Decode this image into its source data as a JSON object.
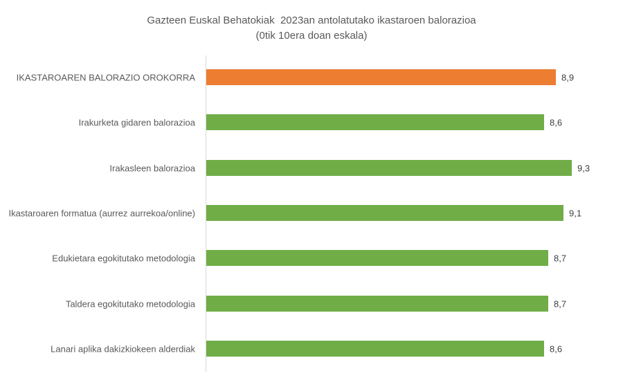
{
  "chart_data": {
    "type": "bar",
    "orientation": "horizontal",
    "title": "Gazteen Euskal Behatokiak  2023an antolatutako ikastaroen balorazioa",
    "subtitle": "(0tik 10era doan eskala)",
    "xlabel": "",
    "ylabel": "",
    "xlim": [
      0,
      10
    ],
    "grid": false,
    "legend": null,
    "categories": [
      "IKASTAROAREN BALORAZIO OROKORRA",
      "Irakurketa gidaren balorazioa",
      "Irakasleen balorazioa",
      "Ikastaroaren formatua (aurrez aurrekoa/online)",
      "Edukietara egokitutako metodologia",
      "Taldera egokitutako metodologia",
      "Lanari aplika dakizkiokeen alderdiak"
    ],
    "values": [
      8.9,
      8.6,
      9.3,
      9.1,
      8.7,
      8.7,
      8.6
    ],
    "value_labels": [
      "8,9",
      "8,6",
      "9,3",
      "9,1",
      "8,7",
      "8,7",
      "8,6"
    ],
    "colors": [
      "#ED7D31",
      "#70AD47",
      "#70AD47",
      "#70AD47",
      "#70AD47",
      "#70AD47",
      "#70AD47"
    ]
  },
  "title": {
    "line1": "Gazteen Euskal Behatokiak  2023an antolatutako ikastaroen balorazioa",
    "line2": "(0tik 10era doan eskala)"
  },
  "bars": [
    {
      "label": "IKASTAROAREN BALORAZIO OROKORRA",
      "value": 8.9,
      "value_label": "8,9",
      "color": "#ED7D31"
    },
    {
      "label": "Irakurketa gidaren balorazioa",
      "value": 8.6,
      "value_label": "8,6",
      "color": "#70AD47"
    },
    {
      "label": "Irakasleen balorazioa",
      "value": 9.3,
      "value_label": "9,3",
      "color": "#70AD47"
    },
    {
      "label": "Ikastaroaren formatua (aurrez aurrekoa/online)",
      "value": 9.1,
      "value_label": "9,1",
      "color": "#70AD47"
    },
    {
      "label": "Edukietara egokitutako metodologia",
      "value": 8.7,
      "value_label": "8,7",
      "color": "#70AD47"
    },
    {
      "label": "Taldera egokitutako metodologia",
      "value": 8.7,
      "value_label": "8,7",
      "color": "#70AD47"
    },
    {
      "label": "Lanari aplika dakizkiokeen alderdiak",
      "value": 8.6,
      "value_label": "8,6",
      "color": "#70AD47"
    }
  ]
}
